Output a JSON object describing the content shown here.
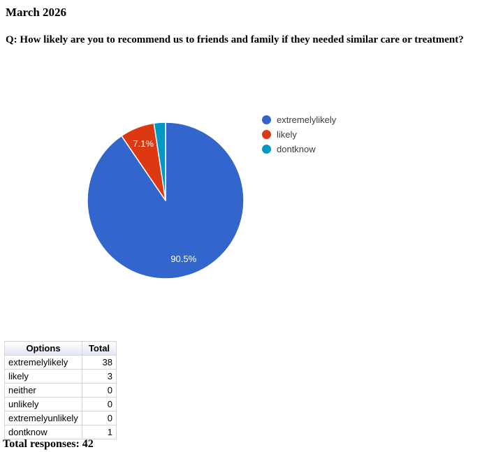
{
  "header": {
    "title": "March 2026",
    "question": "Q: How likely are you to recommend us to friends and family if they needed similar care or treatment?"
  },
  "chart_data": {
    "type": "pie",
    "title": "",
    "legend_position": "right",
    "slice_label_color": "#ffffff",
    "legend_text_color": "#3c3c3c",
    "total": 42,
    "slices": [
      {
        "label": "extremelylikely",
        "value": 38,
        "pct_label": "90.5%",
        "color": "#3366CC"
      },
      {
        "label": "likely",
        "value": 3,
        "pct_label": "7.1%",
        "color": "#DC3912"
      },
      {
        "label": "dontknow",
        "value": 1,
        "pct_label": "",
        "color": "#0099C6"
      }
    ]
  },
  "table": {
    "headers": [
      "Options",
      "Total"
    ],
    "rows": [
      {
        "option": "extremelylikely",
        "total": "38"
      },
      {
        "option": "likely",
        "total": "3"
      },
      {
        "option": "neither",
        "total": "0"
      },
      {
        "option": "unlikely",
        "total": "0"
      },
      {
        "option": "extremelyunlikely",
        "total": "0"
      },
      {
        "option": "dontknow",
        "total": "1"
      }
    ]
  },
  "footer": {
    "total_responses": "Total responses: 42"
  }
}
